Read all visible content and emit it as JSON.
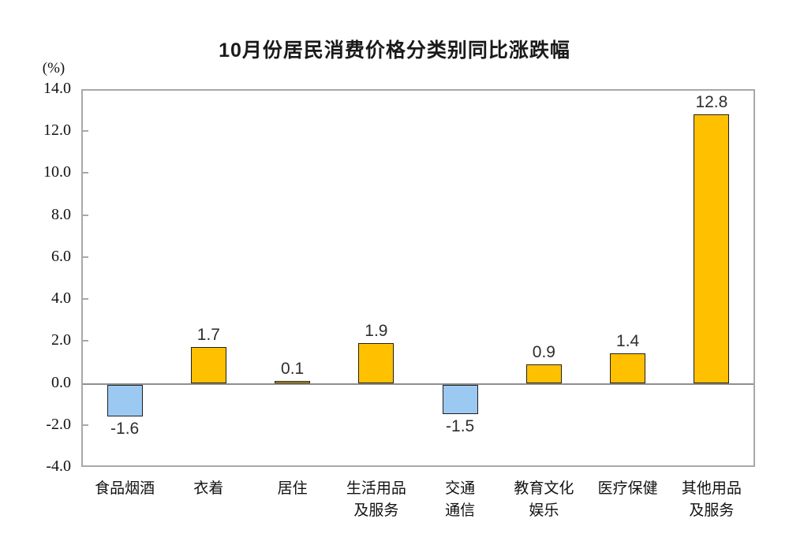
{
  "title": "10月份居民消费价格分类别同比涨跌幅",
  "chart_data": {
    "type": "bar",
    "title": "10月份居民消费价格分类别同比涨跌幅",
    "unit_label": "(%)",
    "categories": [
      "食品烟酒",
      "衣着",
      "居住",
      "生活用品\n及服务",
      "交通\n通信",
      "教育文化\n娱乐",
      "医疗保健",
      "其他用品\n及服务"
    ],
    "values": [
      -1.6,
      1.7,
      0.1,
      1.9,
      -1.5,
      0.9,
      1.4,
      12.8
    ],
    "value_labels": [
      "-1.6",
      "1.7",
      "0.1",
      "1.9",
      "-1.5",
      "0.9",
      "1.4",
      "12.8"
    ],
    "ylim": [
      -4.0,
      14.0
    ],
    "ytick_labels": [
      "14.0",
      "12.0",
      "10.0",
      "8.0",
      "6.0",
      "4.0",
      "2.0",
      "0.0",
      "-2.0",
      "-4.0"
    ],
    "grid": "off",
    "legend": "none",
    "colors": {
      "positive_bar": "#FFC000",
      "negative_bar": "#9CC9F2",
      "bar_border": "#1F1F1F",
      "plot_border": "#A8A8A8",
      "zero_line": "#8F8F8F",
      "text": "#111111"
    }
  }
}
